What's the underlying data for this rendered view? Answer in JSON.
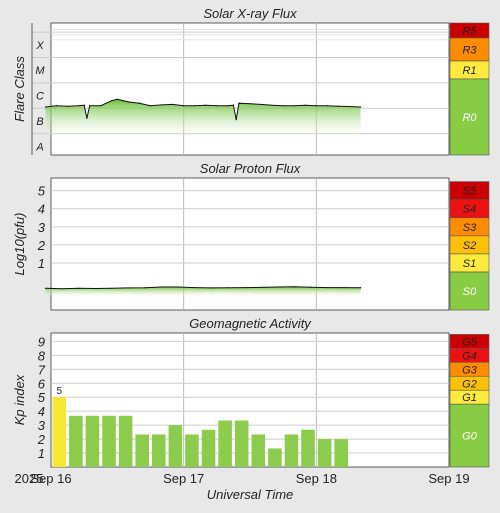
{
  "chart_data": [
    {
      "type": "line",
      "title": "Solar X-ray Flux",
      "ylabel": "Flare Class",
      "y_scale": "log",
      "y_levels": [
        {
          "label": "A",
          "level": 1
        },
        {
          "label": "B",
          "level": 2
        },
        {
          "label": "C",
          "level": 3
        },
        {
          "label": "M",
          "level": 4
        },
        {
          "label": "X",
          "level": 5
        }
      ],
      "ylim_level": [
        1,
        6
      ],
      "series": [
        {
          "x": [
            "2025-09-15 23:00",
            "2025-09-16 01:00",
            "2025-09-16 03:00",
            "2025-09-16 05:00",
            "2025-09-16 06:00",
            "2025-09-16 06:30",
            "2025-09-16 07:00",
            "2025-09-16 09:00",
            "2025-09-16 11:00",
            "2025-09-16 12:00",
            "2025-09-16 13:00",
            "2025-09-16 14:00",
            "2025-09-16 16:00",
            "2025-09-16 18:00",
            "2025-09-16 20:00",
            "2025-09-16 22:00",
            "2025-09-17 00:00",
            "2025-09-17 02:00",
            "2025-09-17 04:00",
            "2025-09-17 06:00",
            "2025-09-17 08:00",
            "2025-09-17 09:00",
            "2025-09-17 09:30",
            "2025-09-17 10:00",
            "2025-09-17 12:00",
            "2025-09-17 14:00",
            "2025-09-17 16:00",
            "2025-09-17 18:00",
            "2025-09-17 20:00",
            "2025-09-17 22:00",
            "2025-09-18 00:00",
            "2025-09-18 02:00",
            "2025-09-18 04:00",
            "2025-09-18 06:00",
            "2025-09-18 08:00"
          ],
          "values": [
            2.55,
            2.6,
            2.58,
            2.6,
            2.62,
            2.1,
            2.6,
            2.6,
            2.8,
            2.85,
            2.8,
            2.75,
            2.7,
            2.6,
            2.63,
            2.65,
            2.6,
            2.6,
            2.62,
            2.6,
            2.6,
            2.62,
            2.05,
            2.7,
            2.68,
            2.65,
            2.62,
            2.6,
            2.6,
            2.62,
            2.6,
            2.6,
            2.58,
            2.57,
            2.55
          ]
        }
      ],
      "scale_bands": [
        {
          "label": "R5",
          "color": "#cc0000"
        },
        {
          "label": "R3",
          "color": "#ff8c00"
        },
        {
          "label": "R1",
          "color": "#ffeb3b"
        },
        {
          "label": "R0",
          "color": "#88cc44"
        }
      ],
      "x_ticks": [
        "Sep 16",
        "Sep 17",
        "Sep 18",
        "Sep 19"
      ],
      "x_year_label": "2025",
      "xlabel": "Universal Time",
      "grid": true
    },
    {
      "type": "line",
      "title": "Solar Proton Flux",
      "ylabel": "Log10(pfu)",
      "y_ticks": [
        1,
        2,
        3,
        4,
        5
      ],
      "ylim": [
        -1.6,
        5.7
      ],
      "series": [
        {
          "x": [
            "2025-09-15 23:00",
            "2025-09-16 02:00",
            "2025-09-16 05:00",
            "2025-09-16 08:00",
            "2025-09-16 11:00",
            "2025-09-16 14:00",
            "2025-09-16 17:00",
            "2025-09-16 20:00",
            "2025-09-16 23:00",
            "2025-09-17 02:00",
            "2025-09-17 05:00",
            "2025-09-17 08:00",
            "2025-09-17 11:00",
            "2025-09-17 14:00",
            "2025-09-17 17:00",
            "2025-09-17 20:00",
            "2025-09-17 23:00",
            "2025-09-18 02:00",
            "2025-09-18 05:00",
            "2025-09-18 08:00"
          ],
          "values": [
            -0.4,
            -0.42,
            -0.4,
            -0.41,
            -0.4,
            -0.38,
            -0.37,
            -0.33,
            -0.33,
            -0.36,
            -0.38,
            -0.37,
            -0.36,
            -0.35,
            -0.33,
            -0.31,
            -0.34,
            -0.36,
            -0.36,
            -0.37
          ]
        }
      ],
      "scale_bands": [
        {
          "label": "S5",
          "color": "#cc0000"
        },
        {
          "label": "S4",
          "color": "#ee1111"
        },
        {
          "label": "S3",
          "color": "#ff8c00"
        },
        {
          "label": "S2",
          "color": "#ffc107"
        },
        {
          "label": "S1",
          "color": "#ffeb3b"
        },
        {
          "label": "S0",
          "color": "#88cc44"
        }
      ],
      "x_ticks": [
        "Sep 16",
        "Sep 17",
        "Sep 18",
        "Sep 19"
      ],
      "xlabel": "Universal Time",
      "grid": true
    },
    {
      "type": "bar",
      "title": "Geomagnetic Activity",
      "ylabel": "Kp index",
      "y_ticks": [
        1,
        2,
        3,
        4,
        5,
        6,
        7,
        8,
        9
      ],
      "ylim": [
        0,
        9.6
      ],
      "bar_starts": [
        "2025-09-16 00:00",
        "2025-09-16 03:00",
        "2025-09-16 06:00",
        "2025-09-16 09:00",
        "2025-09-16 12:00",
        "2025-09-16 15:00",
        "2025-09-16 18:00",
        "2025-09-16 21:00",
        "2025-09-17 00:00",
        "2025-09-17 03:00",
        "2025-09-17 06:00",
        "2025-09-17 09:00",
        "2025-09-17 12:00",
        "2025-09-17 15:00",
        "2025-09-17 18:00",
        "2025-09-17 21:00",
        "2025-09-18 00:00",
        "2025-09-18 03:00"
      ],
      "values": [
        5.0,
        3.67,
        3.67,
        3.67,
        3.67,
        2.33,
        2.33,
        3.0,
        2.33,
        2.67,
        3.33,
        3.33,
        2.33,
        1.33,
        2.33,
        2.67,
        2.0,
        2.0
      ],
      "data_labels": [
        {
          "index": 0,
          "text": "5"
        }
      ],
      "bar_colors": {
        "storm": "#f5e732",
        "normal": "#8ccc4c"
      },
      "scale_bands": [
        {
          "label": "G5",
          "color": "#cc0000"
        },
        {
          "label": "G4",
          "color": "#ee1111"
        },
        {
          "label": "G3",
          "color": "#ff8c00"
        },
        {
          "label": "G2",
          "color": "#ffc107"
        },
        {
          "label": "G1",
          "color": "#ffeb3b"
        },
        {
          "label": "G0",
          "color": "#88cc44"
        }
      ],
      "x_ticks": [
        "Sep 16",
        "Sep 17",
        "Sep 18",
        "Sep 19"
      ],
      "x_year_label": "2025",
      "xlabel": "Universal Time",
      "grid": true
    }
  ]
}
